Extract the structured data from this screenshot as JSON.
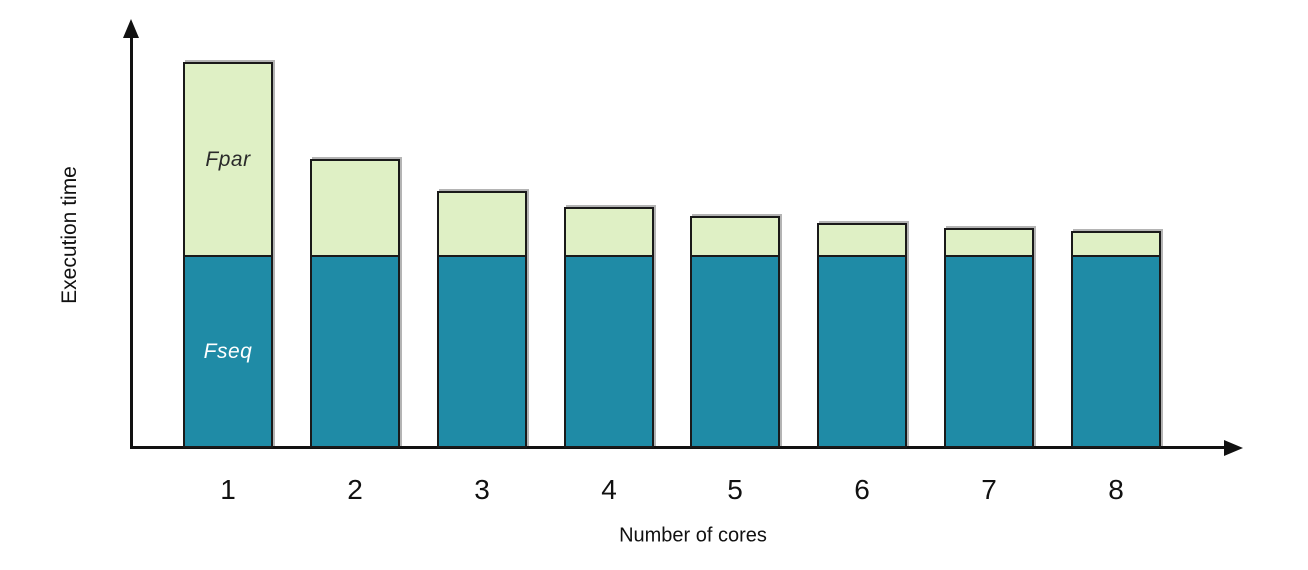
{
  "chart_data": {
    "type": "bar",
    "stacked": true,
    "title": "",
    "xlabel": "Number of cores",
    "ylabel": "Execution time",
    "categories": [
      "1",
      "2",
      "3",
      "4",
      "5",
      "6",
      "7",
      "8"
    ],
    "series": [
      {
        "name": "Fseq",
        "color": "#1f8ba6",
        "text_color": "#ffffff",
        "values": [
          0.5,
          0.5,
          0.5,
          0.5,
          0.5,
          0.5,
          0.5,
          0.5
        ]
      },
      {
        "name": "Fpar",
        "color": "#dff0c5",
        "text_color": "#2b2b2b",
        "values": [
          0.5,
          0.25,
          0.1667,
          0.125,
          0.1,
          0.0833,
          0.0714,
          0.0625
        ]
      }
    ],
    "totals": [
      1.0,
      0.75,
      0.6667,
      0.625,
      0.6,
      0.5833,
      0.5714,
      0.5625
    ],
    "ylim": [
      0,
      1.1
    ],
    "grid": false,
    "legend_position": "none",
    "in_bar_labels_on_first_bar": [
      "Fpar",
      "Fseq"
    ],
    "axis_color": "#111111",
    "bar_border_color": "#1a1a1a",
    "background_color": "#ffffff"
  }
}
